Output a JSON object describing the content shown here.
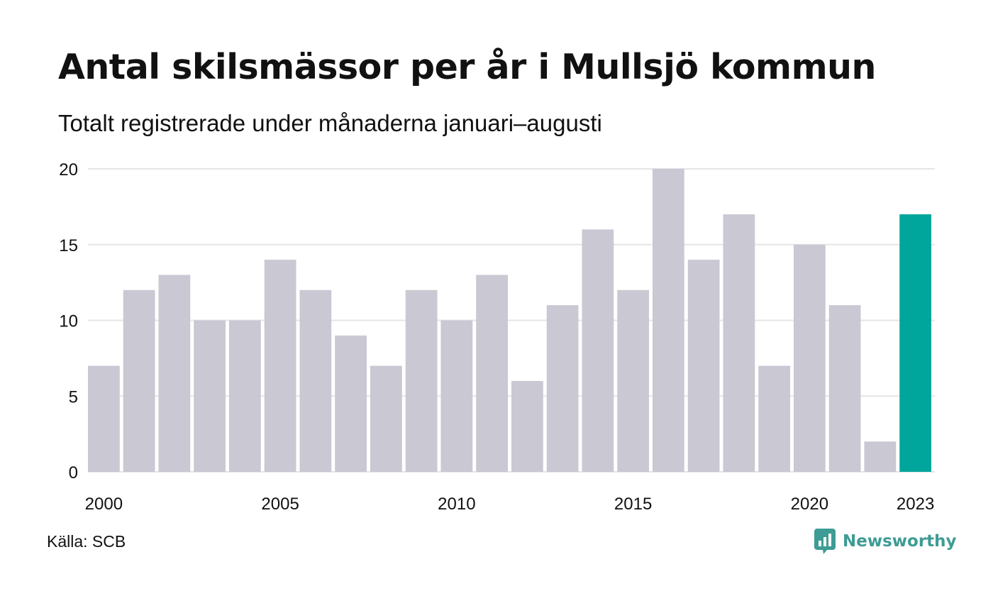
{
  "header": {
    "title": "Antal skilsmässor per år i Mullsjö kommun",
    "subtitle": "Totalt registrerade under månaderna januari–augusti"
  },
  "footer": {
    "source": "Källa: SCB",
    "logo_text": "Newsworthy",
    "logo_icon": "chart-bubble-icon"
  },
  "colors": {
    "bar": "#c9c8d3",
    "highlight": "#00a59b",
    "grid": "#e5e5e5",
    "logo": "#3d9c94"
  },
  "chart_data": {
    "type": "bar",
    "categories": [
      "2000",
      "2001",
      "2002",
      "2003",
      "2004",
      "2005",
      "2006",
      "2007",
      "2008",
      "2009",
      "2010",
      "2011",
      "2012",
      "2013",
      "2014",
      "2015",
      "2016",
      "2017",
      "2018",
      "2019",
      "2020",
      "2021",
      "2022",
      "2023"
    ],
    "values": [
      7,
      12,
      13,
      10,
      10,
      14,
      12,
      9,
      7,
      12,
      10,
      13,
      6,
      11,
      16,
      12,
      20,
      14,
      17,
      7,
      15,
      11,
      2,
      17
    ],
    "highlight_index": 23,
    "xticks": [
      "2000",
      "2005",
      "2010",
      "2015",
      "2020",
      "2023"
    ],
    "yticks": [
      0,
      5,
      10,
      15,
      20
    ],
    "ylim": [
      0,
      20
    ],
    "grid": true,
    "xlabel": "",
    "ylabel": ""
  }
}
